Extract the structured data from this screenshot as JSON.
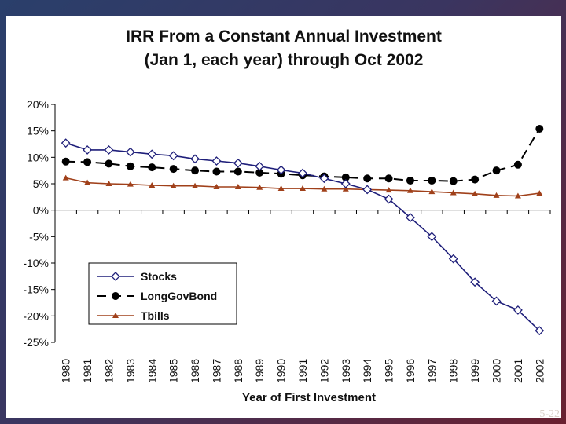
{
  "slide": {
    "number_label": "5-22"
  },
  "chart_data": {
    "type": "line",
    "title": "IRR From a Constant Annual Investment",
    "subtitle": "(Jan 1, each year) through Oct 2002",
    "xlabel": "Year of First Investment",
    "ylabel": "",
    "categories": [
      "1980",
      "1981",
      "1982",
      "1983",
      "1984",
      "1985",
      "1986",
      "1987",
      "1988",
      "1989",
      "1990",
      "1991",
      "1992",
      "1993",
      "1994",
      "1995",
      "1996",
      "1997",
      "1998",
      "1999",
      "2000",
      "2001",
      "2002"
    ],
    "ylim": [
      -25,
      20
    ],
    "yticks": [
      20,
      15,
      10,
      5,
      0,
      -5,
      -10,
      -15,
      -20,
      -25
    ],
    "ytick_labels": [
      "20%",
      "15%",
      "10%",
      "5%",
      "0%",
      "-5%",
      "-10%",
      "-15%",
      "-20%",
      "-25%"
    ],
    "legend_position": "bottom-left",
    "series": [
      {
        "name": "Stocks",
        "color": "#1f1f7a",
        "marker": "diamond-open",
        "dash": "solid",
        "values": [
          12.7,
          11.4,
          11.4,
          11.0,
          10.6,
          10.3,
          9.7,
          9.3,
          8.9,
          8.3,
          7.6,
          7.0,
          6.0,
          5.0,
          3.9,
          2.1,
          -1.4,
          -5.0,
          -9.2,
          -13.6,
          -17.2,
          -18.9,
          -22.8
        ]
      },
      {
        "name": "LongGovBond",
        "color": "#000000",
        "marker": "circle-filled",
        "dash": "dashed",
        "values": [
          9.2,
          9.1,
          8.8,
          8.3,
          8.1,
          7.8,
          7.5,
          7.3,
          7.3,
          7.1,
          6.9,
          6.6,
          6.4,
          6.2,
          6.0,
          6.0,
          5.6,
          5.6,
          5.5,
          5.8,
          7.5,
          8.6,
          15.4
        ]
      },
      {
        "name": "Tbills",
        "color": "#a0401a",
        "marker": "triangle-filled",
        "dash": "solid",
        "values": [
          6.1,
          5.2,
          5.0,
          4.9,
          4.7,
          4.6,
          4.6,
          4.4,
          4.4,
          4.3,
          4.1,
          4.1,
          4.0,
          4.0,
          3.9,
          3.8,
          3.7,
          3.5,
          3.3,
          3.1,
          2.8,
          2.7,
          3.2
        ]
      }
    ]
  }
}
